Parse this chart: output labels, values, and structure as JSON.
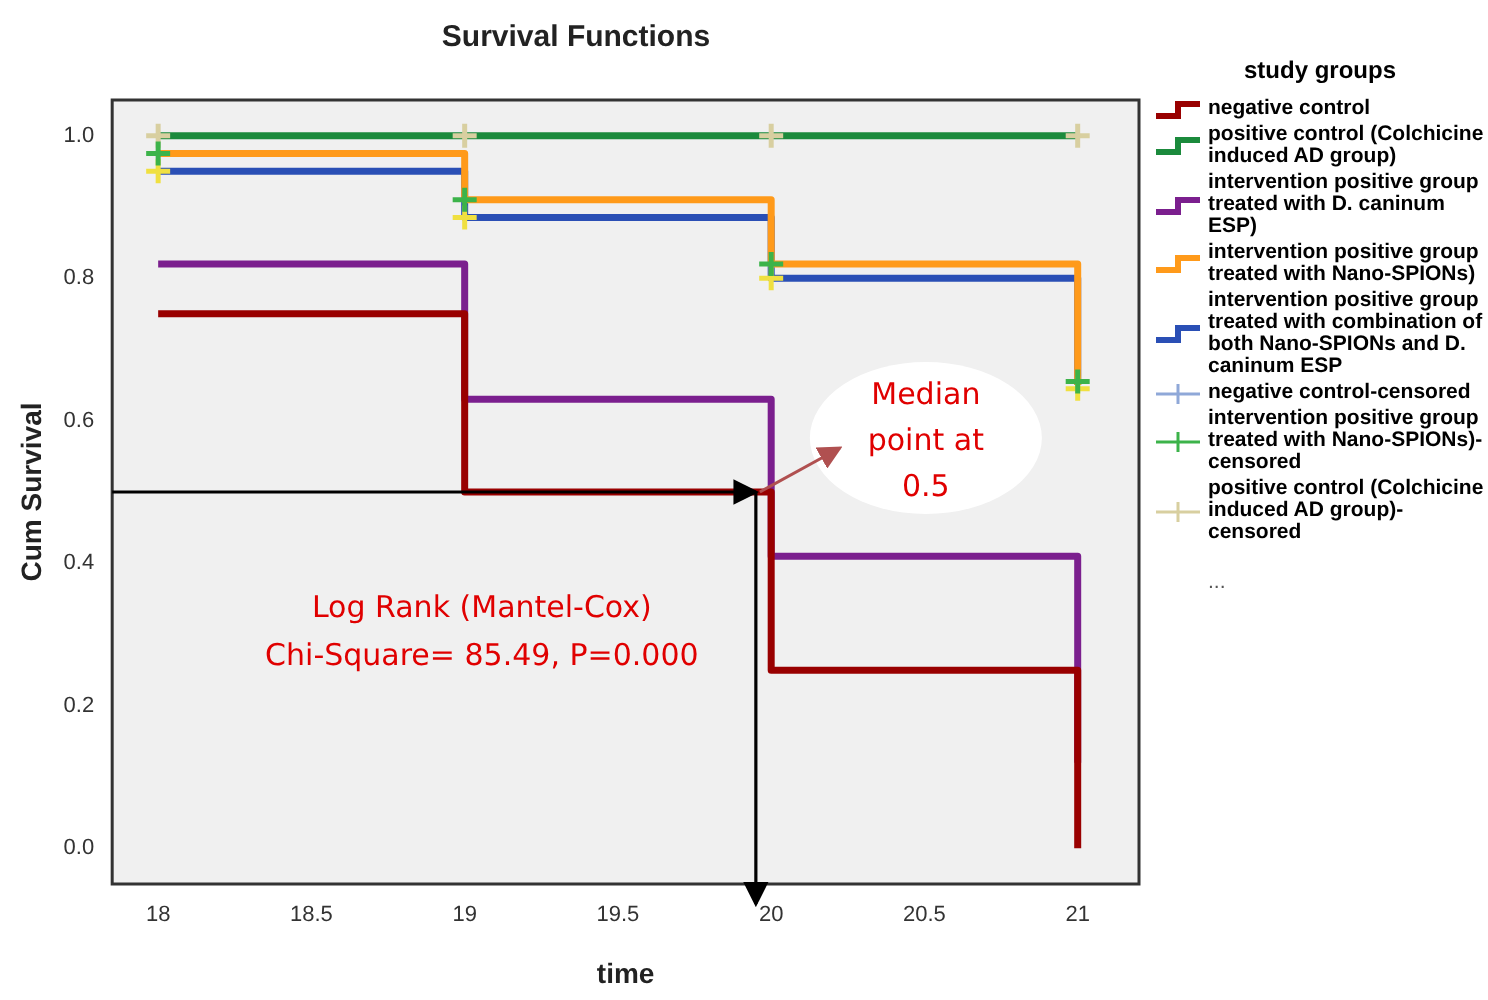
{
  "chart_data": {
    "type": "step",
    "title": "Survival Functions",
    "xlabel": "time",
    "ylabel": "Cum Survival",
    "legend_title": "study groups",
    "legend": "right",
    "grid": false,
    "xlim": [
      17.85,
      21.2
    ],
    "xticks": [
      18,
      18.5,
      19,
      19.5,
      20,
      20.5,
      21
    ],
    "ylim": [
      -0.05,
      1.05
    ],
    "yticks": [
      {
        "value": 0,
        "label": "0.0"
      },
      0.2,
      0.4,
      0.6,
      0.8,
      {
        "value": 1,
        "label": "1.0"
      }
    ],
    "x": [
      18,
      19,
      20,
      21
    ],
    "series": [
      {
        "name": "negative control",
        "color": "#990000",
        "values": [
          0.75,
          0.5,
          0.25,
          0.0
        ],
        "marker": "none"
      },
      {
        "name": "positive control (Colchicine induced AD group)",
        "color": "#1b8a3c",
        "values": [
          1.0,
          1.0,
          1.0,
          1.0
        ],
        "marker": "none"
      },
      {
        "name": "intervention positive group treated with D. caninum ESP)",
        "color": "#7b1f8e",
        "values": [
          0.82,
          0.63,
          0.41,
          0.12
        ],
        "marker": "none"
      },
      {
        "name": "intervention positive group treated with Nano-SPIONs)",
        "color": "#ff9a1a",
        "values": [
          0.975,
          0.91,
          0.82,
          0.65
        ],
        "marker": "none"
      },
      {
        "name": "intervention positive group treated with combination of both Nano-SPIONs and D. caninum ESP",
        "color": "#2a4fb5",
        "values": [
          0.95,
          0.885,
          0.8,
          0.65
        ],
        "marker": "none"
      },
      {
        "name": "negative control-censored",
        "type": "scatter",
        "color": "#8fa8d8",
        "values": [
          null,
          null,
          null,
          null
        ],
        "marker": "cross"
      },
      {
        "name": "intervention positive group treated with Nano-SPIONs)-censored",
        "type": "scatter",
        "color": "#3cb34a",
        "values": [
          0.975,
          0.91,
          0.82,
          0.655
        ],
        "marker": "cross"
      },
      {
        "name": "positive control (Colchicine induced AD group)-censored",
        "type": "scatter",
        "color": "#d8cfa0",
        "values": [
          1.0,
          1.0,
          1.0,
          1.0
        ],
        "marker": "cross"
      },
      {
        "type": "scatter",
        "color": "#f0e040",
        "values": [
          0.95,
          0.885,
          0.8,
          0.645
        ],
        "marker": "cross"
      }
    ],
    "ref_lines": [
      {
        "axis": "y",
        "value": 0.5,
        "color": "#000000"
      },
      {
        "axis": "x",
        "value": 19.95,
        "color": "#000000"
      }
    ],
    "annotations": [
      "Log Rank (Mantel-Cox)\nChi-Square= 85.49, P=0.000",
      "Median point at 0.5",
      "..."
    ]
  }
}
